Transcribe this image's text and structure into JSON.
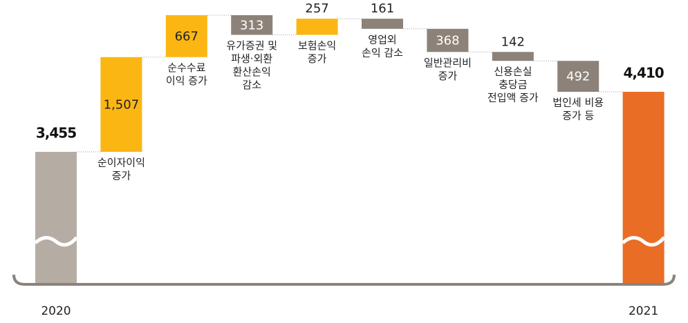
{
  "chart_data": {
    "type": "waterfall",
    "categories": [
      [
        "2020"
      ],
      [
        "순이자이익",
        "증가"
      ],
      [
        "순수수료",
        "이익 증가"
      ],
      [
        "유가증권 및",
        "파생·외환",
        "환산손익",
        "감소"
      ],
      [
        "보험손익",
        "증가"
      ],
      [
        "영업외",
        "손익 감소"
      ],
      [
        "일반관리비",
        "증가"
      ],
      [
        "신용손실",
        "충당금",
        "전입액 증가"
      ],
      [
        "법인세 비용",
        "증가 등"
      ],
      [
        "2021"
      ]
    ],
    "values": [
      3455,
      1507,
      667,
      -313,
      257,
      -161,
      -368,
      -142,
      -492,
      4410
    ],
    "value_labels": [
      "3,455",
      "1,507",
      "667",
      "313",
      "257",
      "161",
      "368",
      "142",
      "492",
      "4,410"
    ],
    "colors": [
      "#b5ada4",
      "#fbb614",
      "#fbb614",
      "#8c8279",
      "#fbb614",
      "#8c8279",
      "#8c8279",
      "#8c8279",
      "#8c8279",
      "#e96d25"
    ]
  }
}
